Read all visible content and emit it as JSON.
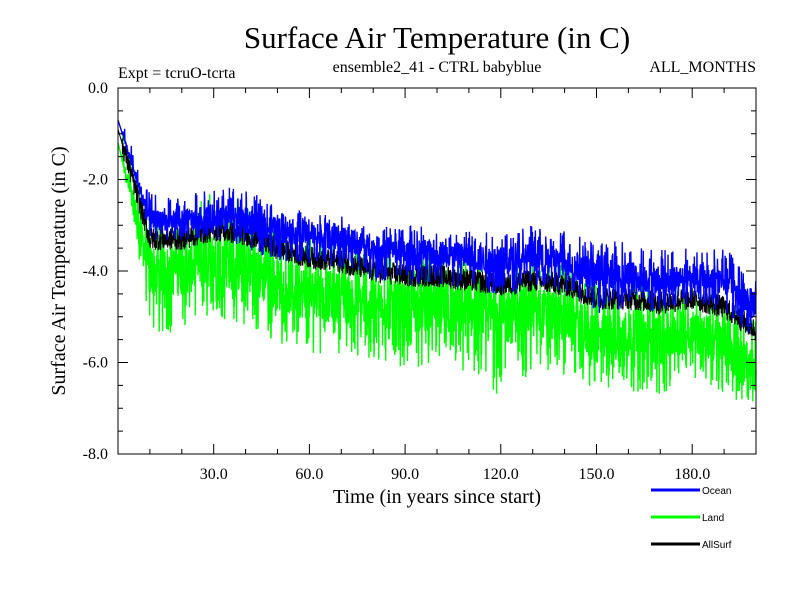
{
  "chart_data": {
    "type": "line",
    "title": "Surface Air Temperature (in C)",
    "subtitle": "ensemble2_41 - CTRL babyblue",
    "expt_label": "Expt = tcruO-tcrta",
    "period_label": "ALL_MONTHS",
    "xlabel": "Time (in years since start)",
    "ylabel": "Surface Air Temperature (in C)",
    "xlim": [
      0,
      200
    ],
    "ylim": [
      -8.0,
      0.0
    ],
    "x_ticks": [
      30.0,
      60.0,
      90.0,
      120.0,
      150.0,
      180.0
    ],
    "x_tick_labels": [
      "30.0",
      "60.0",
      "90.0",
      "120.0",
      "150.0",
      "180.0"
    ],
    "y_ticks": [
      0.0,
      -2.0,
      -4.0,
      -6.0,
      -8.0
    ],
    "y_tick_labels": [
      "0.0",
      "-2.0",
      "-4.0",
      "-6.0",
      "-8.0"
    ],
    "grid": false,
    "legend_position": "bottom-right, below plot",
    "x_step": 10,
    "x": [
      0,
      10,
      20,
      30,
      40,
      50,
      60,
      70,
      80,
      90,
      100,
      110,
      120,
      130,
      140,
      150,
      160,
      170,
      180,
      190,
      200
    ],
    "series": [
      {
        "name": "Ocean",
        "color": "#0000ff",
        "values": [
          -0.7,
          -2.9,
          -2.9,
          -2.8,
          -2.9,
          -3.1,
          -3.2,
          -3.3,
          -3.5,
          -3.6,
          -3.6,
          -3.7,
          -3.8,
          -3.7,
          -3.8,
          -4.1,
          -4.1,
          -4.2,
          -4.1,
          -4.2,
          -4.8
        ],
        "min": [
          -0.5,
          -3.3,
          -3.4,
          -3.3,
          -3.5,
          -3.8,
          -3.9,
          -4.0,
          -4.2,
          -4.3,
          -4.3,
          -4.4,
          -4.6,
          -4.4,
          -4.5,
          -5.0,
          -4.8,
          -4.9,
          -4.7,
          -4.9,
          -5.5
        ],
        "max": [
          -0.5,
          -2.3,
          -2.4,
          -2.1,
          -2.2,
          -2.6,
          -2.7,
          -2.8,
          -3.0,
          -3.0,
          -3.0,
          -3.1,
          -3.1,
          -3.0,
          -3.1,
          -3.4,
          -3.3,
          -3.5,
          -3.5,
          -3.5,
          -3.9
        ]
      },
      {
        "name": "Land",
        "color": "#00ff00",
        "values": [
          -1.2,
          -4.0,
          -4.0,
          -3.7,
          -3.9,
          -4.3,
          -4.5,
          -4.6,
          -4.7,
          -4.8,
          -4.8,
          -4.9,
          -5.0,
          -4.9,
          -5.0,
          -5.5,
          -5.4,
          -5.5,
          -5.3,
          -5.6,
          -6.2
        ],
        "min": [
          -0.4,
          -5.5,
          -5.3,
          -5.0,
          -5.2,
          -5.6,
          -5.8,
          -5.8,
          -6.0,
          -6.1,
          -6.1,
          -6.3,
          -6.8,
          -6.2,
          -6.3,
          -6.6,
          -6.6,
          -6.8,
          -6.3,
          -6.7,
          -7.0
        ],
        "max": [
          -0.4,
          -2.8,
          -2.9,
          -2.1,
          -2.5,
          -3.0,
          -3.2,
          -3.3,
          -3.6,
          -3.6,
          -3.6,
          -3.8,
          -3.8,
          -3.7,
          -3.8,
          -4.2,
          -4.1,
          -4.3,
          -4.2,
          -4.4,
          -5.1
        ]
      },
      {
        "name": "AllSurf",
        "color": "#000000",
        "values": [
          -0.9,
          -3.3,
          -3.3,
          -3.1,
          -3.2,
          -3.5,
          -3.7,
          -3.8,
          -4.0,
          -4.1,
          -4.1,
          -4.2,
          -4.3,
          -4.2,
          -4.3,
          -4.6,
          -4.6,
          -4.7,
          -4.6,
          -4.8,
          -5.3
        ]
      }
    ]
  }
}
